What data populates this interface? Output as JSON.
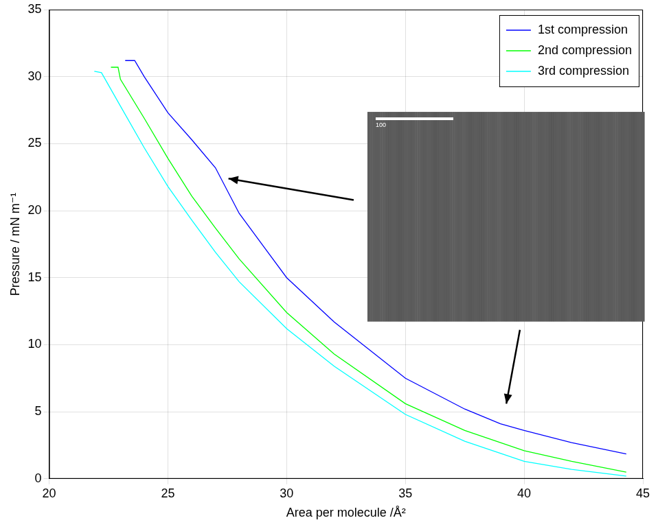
{
  "chart_data": {
    "type": "line",
    "x_label": "Area per molecule /Å²",
    "y_label": "Pressure / mN m⁻¹",
    "xlim": [
      20,
      45
    ],
    "xticks": [
      20,
      25,
      30,
      35,
      40,
      45
    ],
    "ylim": [
      0,
      35
    ],
    "yticks": [
      0,
      5,
      10,
      15,
      20,
      25,
      30,
      35
    ],
    "grid": true,
    "legend": "upper right",
    "marker": "none",
    "line_style": "solid",
    "annotations": [
      "100"
    ],
    "series": [
      {
        "name": "1st compression",
        "color": "#0000ff",
        "x": [
          23.2,
          23.6,
          24,
          25,
          26,
          27,
          28,
          29,
          30,
          32,
          35,
          37.5,
          39,
          40,
          42,
          44.3
        ],
        "values": [
          31.2,
          31.2,
          30.0,
          27.3,
          25.3,
          23.2,
          19.8,
          17.4,
          15.0,
          11.7,
          7.5,
          5.2,
          4.1,
          3.6,
          2.7,
          1.85
        ]
      },
      {
        "name": "2nd compression",
        "color": "#00ff00",
        "x": [
          22.6,
          22.9,
          23,
          24,
          25,
          26,
          27,
          28,
          30,
          32,
          35,
          37.5,
          40,
          42,
          44.3
        ],
        "values": [
          30.7,
          30.7,
          29.8,
          26.9,
          23.9,
          21.1,
          18.7,
          16.4,
          12.4,
          9.3,
          5.6,
          3.6,
          2.1,
          1.3,
          0.5
        ]
      },
      {
        "name": "3rd compression",
        "color": "#00ffff",
        "x": [
          21.9,
          22.2,
          23,
          24,
          25,
          26,
          27,
          28,
          30,
          32,
          35,
          37.5,
          40,
          42,
          44.3
        ],
        "values": [
          30.4,
          30.3,
          27.8,
          24.7,
          21.8,
          19.3,
          16.9,
          14.7,
          11.2,
          8.4,
          4.8,
          2.8,
          1.3,
          0.7,
          0.2
        ]
      }
    ]
  }
}
